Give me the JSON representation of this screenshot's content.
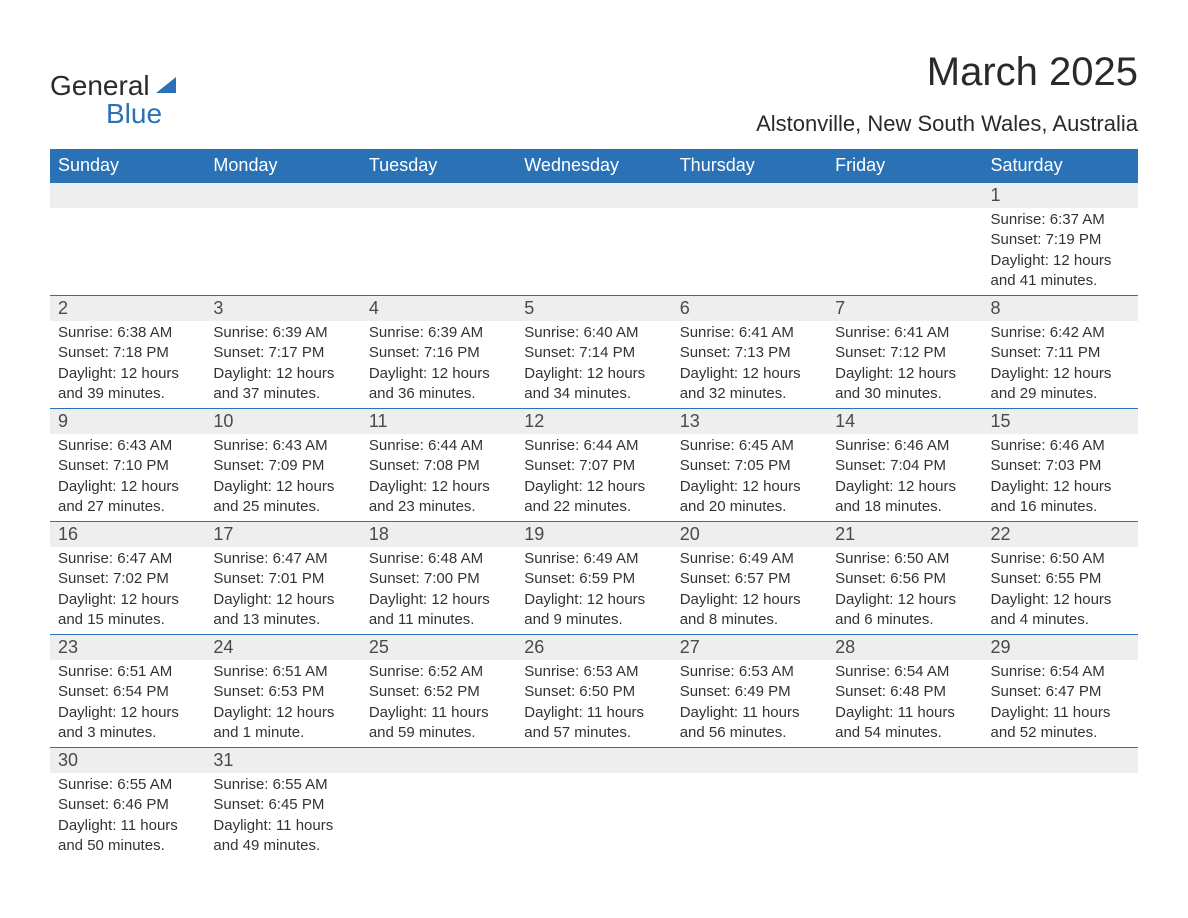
{
  "logo": {
    "text1": "General",
    "text2": "Blue",
    "triangle_color": "#2a72b5"
  },
  "title": "March 2025",
  "location": "Alstonville, New South Wales, Australia",
  "colors": {
    "header_bg": "#2a72b5",
    "header_text": "#ffffff",
    "daynum_bg": "#eeeeee",
    "border": "#2a72b5",
    "body_text": "#333333",
    "title_text": "#2a2a2a",
    "page_bg": "#ffffff"
  },
  "fonts": {
    "title_size_pt": 30,
    "location_size_pt": 16,
    "dow_size_pt": 14,
    "daynum_size_pt": 14,
    "content_size_pt": 11
  },
  "days_of_week": [
    "Sunday",
    "Monday",
    "Tuesday",
    "Wednesday",
    "Thursday",
    "Friday",
    "Saturday"
  ],
  "weeks": [
    [
      null,
      null,
      null,
      null,
      null,
      null,
      {
        "n": "1",
        "sunrise": "6:37 AM",
        "sunset": "7:19 PM",
        "dh": "12",
        "dm": "41"
      }
    ],
    [
      {
        "n": "2",
        "sunrise": "6:38 AM",
        "sunset": "7:18 PM",
        "dh": "12",
        "dm": "39"
      },
      {
        "n": "3",
        "sunrise": "6:39 AM",
        "sunset": "7:17 PM",
        "dh": "12",
        "dm": "37"
      },
      {
        "n": "4",
        "sunrise": "6:39 AM",
        "sunset": "7:16 PM",
        "dh": "12",
        "dm": "36"
      },
      {
        "n": "5",
        "sunrise": "6:40 AM",
        "sunset": "7:14 PM",
        "dh": "12",
        "dm": "34"
      },
      {
        "n": "6",
        "sunrise": "6:41 AM",
        "sunset": "7:13 PM",
        "dh": "12",
        "dm": "32"
      },
      {
        "n": "7",
        "sunrise": "6:41 AM",
        "sunset": "7:12 PM",
        "dh": "12",
        "dm": "30"
      },
      {
        "n": "8",
        "sunrise": "6:42 AM",
        "sunset": "7:11 PM",
        "dh": "12",
        "dm": "29"
      }
    ],
    [
      {
        "n": "9",
        "sunrise": "6:43 AM",
        "sunset": "7:10 PM",
        "dh": "12",
        "dm": "27"
      },
      {
        "n": "10",
        "sunrise": "6:43 AM",
        "sunset": "7:09 PM",
        "dh": "12",
        "dm": "25"
      },
      {
        "n": "11",
        "sunrise": "6:44 AM",
        "sunset": "7:08 PM",
        "dh": "12",
        "dm": "23"
      },
      {
        "n": "12",
        "sunrise": "6:44 AM",
        "sunset": "7:07 PM",
        "dh": "12",
        "dm": "22"
      },
      {
        "n": "13",
        "sunrise": "6:45 AM",
        "sunset": "7:05 PM",
        "dh": "12",
        "dm": "20"
      },
      {
        "n": "14",
        "sunrise": "6:46 AM",
        "sunset": "7:04 PM",
        "dh": "12",
        "dm": "18"
      },
      {
        "n": "15",
        "sunrise": "6:46 AM",
        "sunset": "7:03 PM",
        "dh": "12",
        "dm": "16"
      }
    ],
    [
      {
        "n": "16",
        "sunrise": "6:47 AM",
        "sunset": "7:02 PM",
        "dh": "12",
        "dm": "15"
      },
      {
        "n": "17",
        "sunrise": "6:47 AM",
        "sunset": "7:01 PM",
        "dh": "12",
        "dm": "13"
      },
      {
        "n": "18",
        "sunrise": "6:48 AM",
        "sunset": "7:00 PM",
        "dh": "12",
        "dm": "11"
      },
      {
        "n": "19",
        "sunrise": "6:49 AM",
        "sunset": "6:59 PM",
        "dh": "12",
        "dm": "9"
      },
      {
        "n": "20",
        "sunrise": "6:49 AM",
        "sunset": "6:57 PM",
        "dh": "12",
        "dm": "8"
      },
      {
        "n": "21",
        "sunrise": "6:50 AM",
        "sunset": "6:56 PM",
        "dh": "12",
        "dm": "6"
      },
      {
        "n": "22",
        "sunrise": "6:50 AM",
        "sunset": "6:55 PM",
        "dh": "12",
        "dm": "4"
      }
    ],
    [
      {
        "n": "23",
        "sunrise": "6:51 AM",
        "sunset": "6:54 PM",
        "dh": "12",
        "dm": "3"
      },
      {
        "n": "24",
        "sunrise": "6:51 AM",
        "sunset": "6:53 PM",
        "dh": "12",
        "dm": "1"
      },
      {
        "n": "25",
        "sunrise": "6:52 AM",
        "sunset": "6:52 PM",
        "dh": "11",
        "dm": "59"
      },
      {
        "n": "26",
        "sunrise": "6:53 AM",
        "sunset": "6:50 PM",
        "dh": "11",
        "dm": "57"
      },
      {
        "n": "27",
        "sunrise": "6:53 AM",
        "sunset": "6:49 PM",
        "dh": "11",
        "dm": "56"
      },
      {
        "n": "28",
        "sunrise": "6:54 AM",
        "sunset": "6:48 PM",
        "dh": "11",
        "dm": "54"
      },
      {
        "n": "29",
        "sunrise": "6:54 AM",
        "sunset": "6:47 PM",
        "dh": "11",
        "dm": "52"
      }
    ],
    [
      {
        "n": "30",
        "sunrise": "6:55 AM",
        "sunset": "6:46 PM",
        "dh": "11",
        "dm": "50"
      },
      {
        "n": "31",
        "sunrise": "6:55 AM",
        "sunset": "6:45 PM",
        "dh": "11",
        "dm": "49"
      },
      null,
      null,
      null,
      null,
      null
    ]
  ],
  "labels": {
    "sunrise": "Sunrise:",
    "sunset": "Sunset:",
    "daylight": "Daylight:",
    "hours": "hours",
    "and": "and",
    "minute": "minute",
    "minutes": "minutes"
  }
}
